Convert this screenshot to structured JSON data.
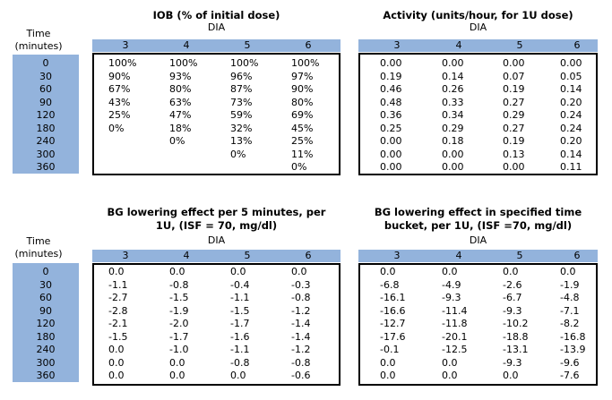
{
  "time_header": "Time\n(minutes)",
  "dia_label": "DIA",
  "dia_values": [
    "3",
    "4",
    "5",
    "6"
  ],
  "time_values": [
    "0",
    "30",
    "60",
    "90",
    "120",
    "180",
    "240",
    "300",
    "360"
  ],
  "tables": [
    {
      "title": "IOB (% of initial dose)",
      "rows": [
        [
          "100%",
          "100%",
          "100%",
          "100%"
        ],
        [
          "90%",
          "93%",
          "96%",
          "97%"
        ],
        [
          "67%",
          "80%",
          "87%",
          "90%"
        ],
        [
          "43%",
          "63%",
          "73%",
          "80%"
        ],
        [
          "25%",
          "47%",
          "59%",
          "69%"
        ],
        [
          "0%",
          "18%",
          "32%",
          "45%"
        ],
        [
          "",
          "0%",
          "13%",
          "25%"
        ],
        [
          "",
          "",
          "0%",
          "11%"
        ],
        [
          "",
          "",
          "",
          "0%"
        ]
      ]
    },
    {
      "title": "Activity (units/hour, for 1U dose)",
      "rows": [
        [
          "0.00",
          "0.00",
          "0.00",
          "0.00"
        ],
        [
          "0.19",
          "0.14",
          "0.07",
          "0.05"
        ],
        [
          "0.46",
          "0.26",
          "0.19",
          "0.14"
        ],
        [
          "0.48",
          "0.33",
          "0.27",
          "0.20"
        ],
        [
          "0.36",
          "0.34",
          "0.29",
          "0.24"
        ],
        [
          "0.25",
          "0.29",
          "0.27",
          "0.24"
        ],
        [
          "0.00",
          "0.18",
          "0.19",
          "0.20"
        ],
        [
          "0.00",
          "0.00",
          "0.13",
          "0.14"
        ],
        [
          "0.00",
          "0.00",
          "0.00",
          "0.11"
        ]
      ]
    },
    {
      "title": "BG lowering effect per 5 minutes, per\n1U, (ISF = 70, mg/dl)",
      "rows": [
        [
          "0.0",
          "0.0",
          "0.0",
          "0.0"
        ],
        [
          "-1.1",
          "-0.8",
          "-0.4",
          "-0.3"
        ],
        [
          "-2.7",
          "-1.5",
          "-1.1",
          "-0.8"
        ],
        [
          "-2.8",
          "-1.9",
          "-1.5",
          "-1.2"
        ],
        [
          "-2.1",
          "-2.0",
          "-1.7",
          "-1.4"
        ],
        [
          "-1.5",
          "-1.7",
          "-1.6",
          "-1.4"
        ],
        [
          "0.0",
          "-1.0",
          "-1.1",
          "-1.2"
        ],
        [
          "0.0",
          "0.0",
          "-0.8",
          "-0.8"
        ],
        [
          "0.0",
          "0.0",
          "0.0",
          "-0.6"
        ]
      ]
    },
    {
      "title": "BG lowering effect in specified time\nbucket, per 1U, (ISF =70, mg/dl)",
      "rows": [
        [
          "0.0",
          "0.0",
          "0.0",
          "0.0"
        ],
        [
          "-6.8",
          "-4.9",
          "-2.6",
          "-1.9"
        ],
        [
          "-16.1",
          "-9.3",
          "-6.7",
          "-4.8"
        ],
        [
          "-16.6",
          "-11.4",
          "-9.3",
          "-7.1"
        ],
        [
          "-12.7",
          "-11.8",
          "-10.2",
          "-8.2"
        ],
        [
          "-17.6",
          "-20.1",
          "-18.8",
          "-16.8"
        ],
        [
          "-0.1",
          "-12.5",
          "-13.1",
          "-13.9"
        ],
        [
          "0.0",
          "0.0",
          "-9.3",
          "-9.6"
        ],
        [
          "0.0",
          "0.0",
          "0.0",
          "-7.6"
        ]
      ]
    }
  ]
}
